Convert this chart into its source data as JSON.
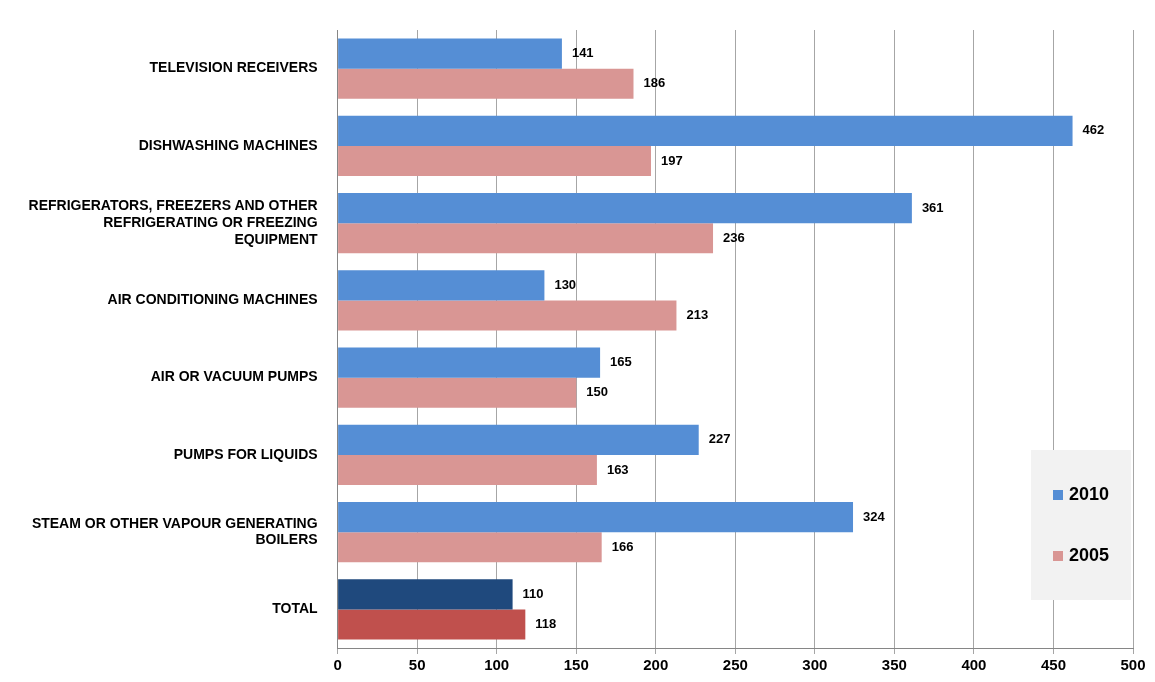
{
  "chart_data": {
    "type": "bar",
    "orientation": "horizontal",
    "categories": [
      "TELEVISION RECEIVERS",
      "DISHWASHING MACHINES",
      "REFRIGERATORS, FREEZERS AND OTHER REFRIGERATING OR FREEZING EQUIPMENT",
      "AIR CONDITIONING MACHINES",
      "AIR OR VACUUM PUMPS",
      "PUMPS FOR LIQUIDS",
      "STEAM OR OTHER VAPOUR GENERATING BOILERS",
      "TOTAL"
    ],
    "series": [
      {
        "name": "2010",
        "color": "#558ed5",
        "colors": [
          "#558ed5",
          "#558ed5",
          "#558ed5",
          "#558ed5",
          "#558ed5",
          "#558ed5",
          "#558ed5",
          "#1f497d"
        ],
        "values": [
          141,
          462,
          361,
          130,
          165,
          227,
          324,
          110
        ]
      },
      {
        "name": "2005",
        "color": "#d99694",
        "colors": [
          "#d99694",
          "#d99694",
          "#d99694",
          "#d99694",
          "#d99694",
          "#d99694",
          "#d99694",
          "#c0504d"
        ],
        "values": [
          186,
          197,
          236,
          213,
          150,
          163,
          166,
          118
        ]
      }
    ],
    "xlim": [
      0,
      500
    ],
    "xticks": [
      0,
      50,
      100,
      150,
      200,
      250,
      300,
      350,
      400,
      450,
      500
    ],
    "grid": "x",
    "legend": "bottom right",
    "data_labels": true
  }
}
